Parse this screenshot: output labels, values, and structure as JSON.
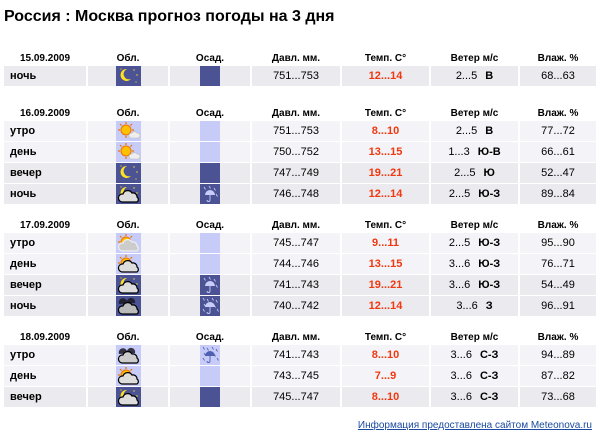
{
  "title": "Россия : Москва прогноз погоды на 3 дня",
  "headers": {
    "clouds": "Обл.",
    "precip": "Осад.",
    "pressure": "Давл. мм.",
    "temp": "Темп. С°",
    "wind": "Ветер м/с",
    "humidity": "Влаж. %"
  },
  "colors": {
    "temp": "#f03810",
    "day_cell": "#c6cbf8",
    "night_cell": "#4b5394",
    "row_light": "#f4f4f8",
    "row_dark": "#ebeaef",
    "link": "#1a4aa0"
  },
  "days": [
    {
      "date": "15.09.2009",
      "rows": [
        {
          "part": "ночь",
          "sky": "moon-clear-icon",
          "precip": "none",
          "pressure": "751...753",
          "temp": "12...14",
          "wind": "2...5",
          "dir": "В",
          "humidity": "68...63"
        }
      ]
    },
    {
      "date": "16.09.2009",
      "rows": [
        {
          "part": "утро",
          "sky": "sun-small-cloud-icon",
          "precip": "none",
          "pressure": "751...753",
          "temp": "8...10",
          "wind": "2...5",
          "dir": "В",
          "humidity": "77...72"
        },
        {
          "part": "день",
          "sky": "sun-small-cloud-icon",
          "precip": "none",
          "pressure": "750...752",
          "temp": "13...15",
          "wind": "1...3",
          "dir": "Ю-В",
          "humidity": "66...61"
        },
        {
          "part": "вечер",
          "sky": "moon-clear-icon",
          "precip": "none",
          "pressure": "747...749",
          "temp": "19...21",
          "wind": "2...5",
          "dir": "Ю",
          "humidity": "52...47"
        },
        {
          "part": "ночь",
          "sky": "moon-cloud-icon",
          "precip": "light-rain",
          "pressure": "746...748",
          "temp": "12...14",
          "wind": "2...5",
          "dir": "Ю-З",
          "humidity": "89...84"
        }
      ]
    },
    {
      "date": "17.09.2009",
      "rows": [
        {
          "part": "утро",
          "sky": "sun-grey-cloud-icon",
          "precip": "none",
          "pressure": "745...747",
          "temp": "9...11",
          "wind": "2...5",
          "dir": "Ю-З",
          "humidity": "95...90"
        },
        {
          "part": "день",
          "sky": "sun-cloud-icon",
          "precip": "none",
          "pressure": "744...746",
          "temp": "13...15",
          "wind": "3...6",
          "dir": "Ю-З",
          "humidity": "76...71"
        },
        {
          "part": "вечер",
          "sky": "moon-cloud-icon",
          "precip": "light-rain",
          "pressure": "741...743",
          "temp": "19...21",
          "wind": "3...6",
          "dir": "Ю-З",
          "humidity": "54...49"
        },
        {
          "part": "ночь",
          "sky": "night-storm-cloud-icon",
          "precip": "rain",
          "pressure": "740...742",
          "temp": "12...14",
          "wind": "3...6",
          "dir": "З",
          "humidity": "96...91"
        }
      ]
    },
    {
      "date": "18.09.2009",
      "rows": [
        {
          "part": "утро",
          "sky": "dark-cloud-icon",
          "precip": "rain",
          "pressure": "741...743",
          "temp": "8...10",
          "wind": "3...6",
          "dir": "С-З",
          "humidity": "94...89"
        },
        {
          "part": "день",
          "sky": "sun-cloud-icon",
          "precip": "none",
          "pressure": "743...745",
          "temp": "7...9",
          "wind": "3...6",
          "dir": "С-З",
          "humidity": "87...82"
        },
        {
          "part": "вечер",
          "sky": "moon-cloud-icon",
          "precip": "none",
          "pressure": "745...747",
          "temp": "8...10",
          "wind": "3...6",
          "dir": "С-З",
          "humidity": "73...68"
        }
      ]
    }
  ],
  "credit": "Информация предоставлена сайтом Meteonova.ru"
}
